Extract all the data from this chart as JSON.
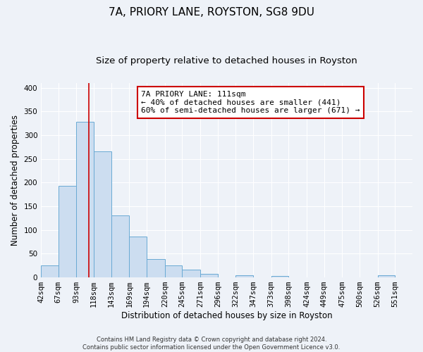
{
  "title": "7A, PRIORY LANE, ROYSTON, SG8 9DU",
  "subtitle": "Size of property relative to detached houses in Royston",
  "xlabel": "Distribution of detached houses by size in Royston",
  "ylabel": "Number of detached properties",
  "bin_labels": [
    "42sqm",
    "67sqm",
    "93sqm",
    "118sqm",
    "143sqm",
    "169sqm",
    "194sqm",
    "220sqm",
    "245sqm",
    "271sqm",
    "296sqm",
    "322sqm",
    "347sqm",
    "373sqm",
    "398sqm",
    "424sqm",
    "449sqm",
    "475sqm",
    "500sqm",
    "526sqm",
    "551sqm"
  ],
  "bin_edges": [
    42,
    67,
    93,
    118,
    143,
    169,
    194,
    220,
    245,
    271,
    296,
    322,
    347,
    373,
    398,
    424,
    449,
    475,
    500,
    526,
    551,
    576
  ],
  "bar_heights": [
    25,
    193,
    328,
    265,
    130,
    86,
    38,
    25,
    17,
    8,
    0,
    4,
    0,
    3,
    0,
    0,
    0,
    0,
    0,
    4,
    0
  ],
  "bar_color": "#ccddf0",
  "bar_edge_color": "#6aaad4",
  "property_size": 111,
  "property_line_color": "#cc0000",
  "annotation_text": "7A PRIORY LANE: 111sqm\n← 40% of detached houses are smaller (441)\n60% of semi-detached houses are larger (671) →",
  "annotation_box_color": "#ffffff",
  "annotation_box_edge": "#cc0000",
  "ylim": [
    0,
    410
  ],
  "background_color": "#eef2f8",
  "grid_color": "#ffffff",
  "footer_line1": "Contains HM Land Registry data © Crown copyright and database right 2024.",
  "footer_line2": "Contains public sector information licensed under the Open Government Licence v3.0.",
  "title_fontsize": 11,
  "subtitle_fontsize": 9.5,
  "xlabel_fontsize": 8.5,
  "ylabel_fontsize": 8.5,
  "tick_fontsize": 7.5,
  "annotation_fontsize": 8,
  "footer_fontsize": 6,
  "yticks": [
    0,
    50,
    100,
    150,
    200,
    250,
    300,
    350,
    400
  ]
}
